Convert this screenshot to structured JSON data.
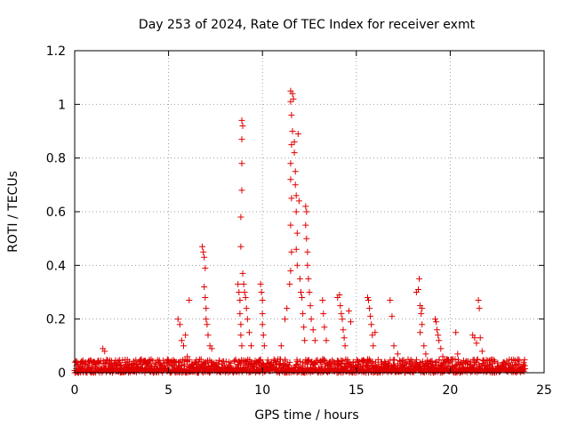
{
  "chart_data": {
    "type": "scatter",
    "title": "Day 253 of 2024, Rate Of TEC Index for receiver exmt",
    "xlabel": "GPS time / hours",
    "ylabel": "ROTI / TECUs",
    "xlim": [
      0,
      25
    ],
    "ylim": [
      0,
      1.2
    ],
    "xticks": [
      0,
      5,
      10,
      15,
      20,
      25
    ],
    "yticks": [
      0,
      0.2,
      0.4,
      0.6,
      0.8,
      1,
      1.2
    ],
    "xtick_labels": [
      "0",
      "5",
      "10",
      "15",
      "20",
      "25"
    ],
    "ytick_labels": [
      "0",
      "0.2",
      "0.4",
      "0.6",
      "0.8",
      "1",
      "1.2"
    ],
    "grid": true,
    "marker": "+",
    "color": "#e00000",
    "series": [
      {
        "name": "ROTI",
        "baseline": {
          "x_range": [
            0,
            24
          ],
          "y_range": [
            0.0,
            0.05
          ]
        },
        "points": [
          [
            1.5,
            0.09
          ],
          [
            1.6,
            0.08
          ],
          [
            5.5,
            0.2
          ],
          [
            5.6,
            0.18
          ],
          [
            5.7,
            0.12
          ],
          [
            5.8,
            0.1
          ],
          [
            5.9,
            0.14
          ],
          [
            6.0,
            0.06
          ],
          [
            6.1,
            0.27
          ],
          [
            6.8,
            0.47
          ],
          [
            6.85,
            0.45
          ],
          [
            6.9,
            0.43
          ],
          [
            6.95,
            0.39
          ],
          [
            6.9,
            0.32
          ],
          [
            6.95,
            0.28
          ],
          [
            7.0,
            0.24
          ],
          [
            7.0,
            0.2
          ],
          [
            7.05,
            0.18
          ],
          [
            7.1,
            0.14
          ],
          [
            7.2,
            0.1
          ],
          [
            7.3,
            0.09
          ],
          [
            8.7,
            0.33
          ],
          [
            8.75,
            0.3
          ],
          [
            8.8,
            0.27
          ],
          [
            8.8,
            0.22
          ],
          [
            8.85,
            0.18
          ],
          [
            8.85,
            0.14
          ],
          [
            8.9,
            0.1
          ],
          [
            8.9,
            0.94
          ],
          [
            8.95,
            0.92
          ],
          [
            8.9,
            0.87
          ],
          [
            8.9,
            0.78
          ],
          [
            8.9,
            0.68
          ],
          [
            8.85,
            0.58
          ],
          [
            8.85,
            0.47
          ],
          [
            8.95,
            0.37
          ],
          [
            9.0,
            0.33
          ],
          [
            9.05,
            0.3
          ],
          [
            9.1,
            0.28
          ],
          [
            9.15,
            0.24
          ],
          [
            9.2,
            0.2
          ],
          [
            9.3,
            0.15
          ],
          [
            9.4,
            0.1
          ],
          [
            9.9,
            0.33
          ],
          [
            9.95,
            0.3
          ],
          [
            10.0,
            0.27
          ],
          [
            10.0,
            0.22
          ],
          [
            10.0,
            0.18
          ],
          [
            10.05,
            0.14
          ],
          [
            10.1,
            0.1
          ],
          [
            11.0,
            0.1
          ],
          [
            11.2,
            0.2
          ],
          [
            11.3,
            0.24
          ],
          [
            11.45,
            0.33
          ],
          [
            11.5,
            0.38
          ],
          [
            11.55,
            0.45
          ],
          [
            11.5,
            0.55
          ],
          [
            11.55,
            0.65
          ],
          [
            11.5,
            0.72
          ],
          [
            11.5,
            0.78
          ],
          [
            11.55,
            0.85
          ],
          [
            11.6,
            0.9
          ],
          [
            11.55,
            0.96
          ],
          [
            11.5,
            1.01
          ],
          [
            11.5,
            1.05
          ],
          [
            11.6,
            1.04
          ],
          [
            11.65,
            1.02
          ],
          [
            11.7,
            0.86
          ],
          [
            11.7,
            0.82
          ],
          [
            11.75,
            0.75
          ],
          [
            11.75,
            0.7
          ],
          [
            11.8,
            0.66
          ],
          [
            11.8,
            0.6
          ],
          [
            11.85,
            0.52
          ],
          [
            11.8,
            0.46
          ],
          [
            11.85,
            0.4
          ],
          [
            11.9,
            0.89
          ],
          [
            11.95,
            0.64
          ],
          [
            12.0,
            0.35
          ],
          [
            12.05,
            0.3
          ],
          [
            12.1,
            0.28
          ],
          [
            12.15,
            0.22
          ],
          [
            12.2,
            0.17
          ],
          [
            12.25,
            0.12
          ],
          [
            12.3,
            0.62
          ],
          [
            12.35,
            0.6
          ],
          [
            12.3,
            0.55
          ],
          [
            12.35,
            0.5
          ],
          [
            12.4,
            0.45
          ],
          [
            12.4,
            0.4
          ],
          [
            12.45,
            0.35
          ],
          [
            12.5,
            0.3
          ],
          [
            12.55,
            0.25
          ],
          [
            12.6,
            0.2
          ],
          [
            12.7,
            0.16
          ],
          [
            12.8,
            0.12
          ],
          [
            13.2,
            0.27
          ],
          [
            13.25,
            0.22
          ],
          [
            13.3,
            0.17
          ],
          [
            13.4,
            0.12
          ],
          [
            13.2,
            0.05
          ],
          [
            14.0,
            0.28
          ],
          [
            14.1,
            0.29
          ],
          [
            14.15,
            0.25
          ],
          [
            14.2,
            0.22
          ],
          [
            14.25,
            0.2
          ],
          [
            14.3,
            0.16
          ],
          [
            14.35,
            0.13
          ],
          [
            14.4,
            0.1
          ],
          [
            14.6,
            0.23
          ],
          [
            14.7,
            0.19
          ],
          [
            15.6,
            0.28
          ],
          [
            15.65,
            0.27
          ],
          [
            15.7,
            0.24
          ],
          [
            15.75,
            0.21
          ],
          [
            15.8,
            0.18
          ],
          [
            15.85,
            0.14
          ],
          [
            15.9,
            0.1
          ],
          [
            15.6,
            0.05
          ],
          [
            16.0,
            0.15
          ],
          [
            16.8,
            0.27
          ],
          [
            16.9,
            0.21
          ],
          [
            17.0,
            0.1
          ],
          [
            17.2,
            0.07
          ],
          [
            18.2,
            0.3
          ],
          [
            18.3,
            0.31
          ],
          [
            18.35,
            0.35
          ],
          [
            18.4,
            0.25
          ],
          [
            18.45,
            0.22
          ],
          [
            18.5,
            0.24
          ],
          [
            18.5,
            0.18
          ],
          [
            18.4,
            0.15
          ],
          [
            18.6,
            0.1
          ],
          [
            18.7,
            0.07
          ],
          [
            19.2,
            0.2
          ],
          [
            19.25,
            0.19
          ],
          [
            19.3,
            0.16
          ],
          [
            19.35,
            0.14
          ],
          [
            19.4,
            0.12
          ],
          [
            19.5,
            0.09
          ],
          [
            19.6,
            0.06
          ],
          [
            20.3,
            0.15
          ],
          [
            20.4,
            0.07
          ],
          [
            21.2,
            0.14
          ],
          [
            21.3,
            0.13
          ],
          [
            21.4,
            0.11
          ],
          [
            21.5,
            0.27
          ],
          [
            21.55,
            0.24
          ],
          [
            21.6,
            0.13
          ],
          [
            21.7,
            0.08
          ],
          [
            23.9,
            0.03
          ]
        ]
      }
    ]
  }
}
